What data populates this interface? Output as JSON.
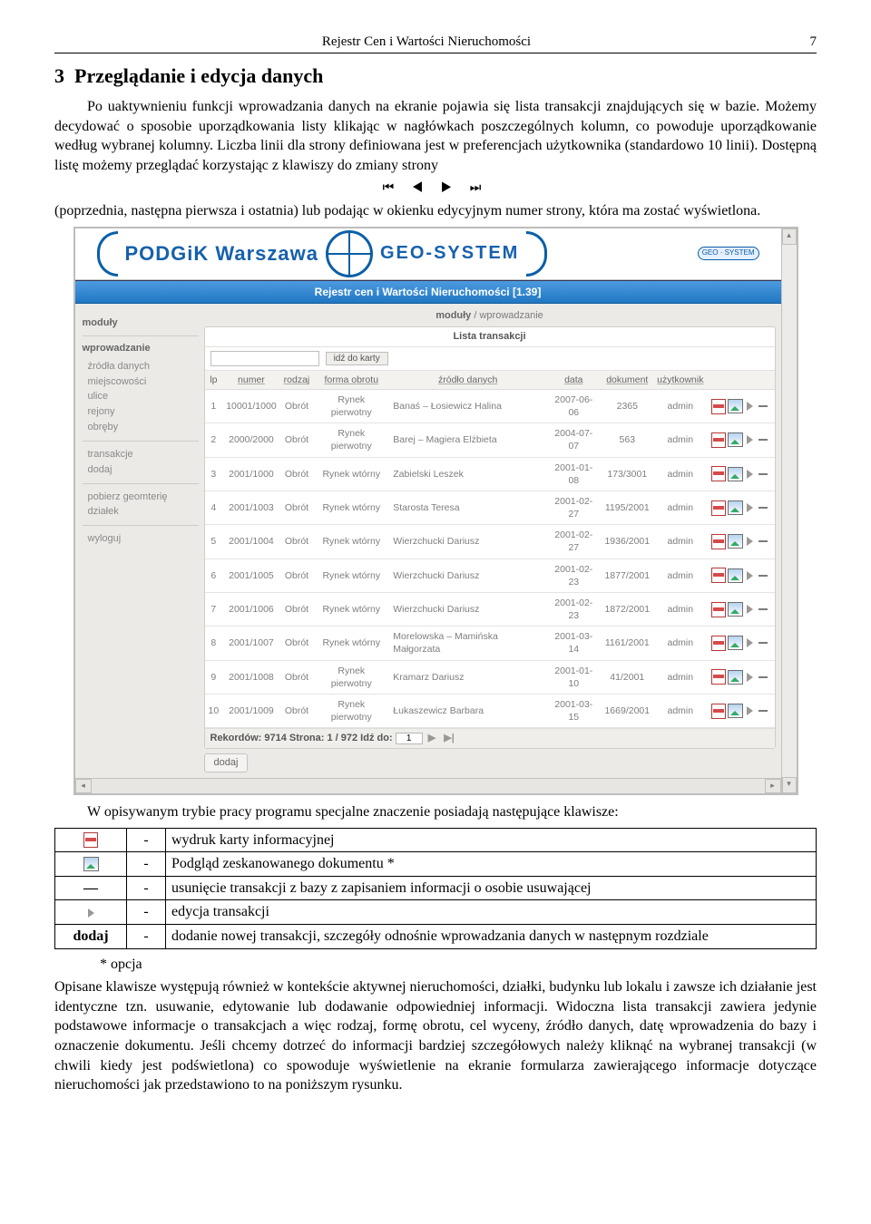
{
  "header": {
    "title": "Rejestr Cen i Wartości Nieruchomości",
    "page": "7"
  },
  "section": {
    "num": "3",
    "title": "Przeglądanie i edycja danych"
  },
  "para1": "Po uaktywnieniu funkcji wprowadzania danych na ekranie pojawia się lista transakcji znajdujących się w bazie. Możemy decydować o sposobie uporządkowania listy klikając w nagłówkach poszczególnych kolumn, co powoduje uporządkowanie według wybranej kolumny. Liczba linii dla strony definiowana jest w preferencjach użytkownika (standardowo 10 linii). Dostępną listę możemy przeglądać korzystając z klawiszy do zmiany strony",
  "nav_glyphs": "⏮ ◀ ▶ ⏭",
  "para2": "(poprzednia, następna pierwsza i ostatnia) lub podając w okienku edycyjnym numer strony, która ma zostać wyświetlona.",
  "app": {
    "banner": {
      "left": "PODGiK Warszawa",
      "right": "GEO-SYSTEM",
      "badge": "GEO · SYSTEM"
    },
    "titlebar": "Rejestr cen i Wartości Nieruchomości [1.39]",
    "crumb_root": "moduły",
    "crumb_leaf": "wprowadzanie",
    "sidebar": {
      "h1": "moduły",
      "h2": "wprowadzanie",
      "g1": [
        "źródła danych",
        "miejscowości",
        "ulice",
        "rejony",
        "obręby"
      ],
      "g2": [
        "transakcje",
        "dodaj"
      ],
      "g3": [
        "pobierz geomterię",
        "działek"
      ],
      "g4": [
        "wyloguj"
      ]
    },
    "panel_title": "Lista transakcji",
    "go_button": "idź do karty",
    "columns": [
      "lp",
      "numer",
      "rodzaj",
      "forma obrotu",
      "źródło danych",
      "data",
      "dokument",
      "użytkownik"
    ],
    "rows": [
      {
        "lp": "1",
        "numer": "10001/1000",
        "rodzaj": "Obrót",
        "forma": "Rynek pierwotny",
        "zrodlo": "Banaś – Łosiewicz Halina",
        "data": "2007-06-06",
        "dok": "2365",
        "user": "admin"
      },
      {
        "lp": "2",
        "numer": "2000/2000",
        "rodzaj": "Obrót",
        "forma": "Rynek pierwotny",
        "zrodlo": "Barej – Magiera Elżbieta",
        "data": "2004-07-07",
        "dok": "563",
        "user": "admin"
      },
      {
        "lp": "3",
        "numer": "2001/1000",
        "rodzaj": "Obrót",
        "forma": "Rynek wtórny",
        "zrodlo": "Zabielski Leszek",
        "data": "2001-01-08",
        "dok": "173/3001",
        "user": "admin"
      },
      {
        "lp": "4",
        "numer": "2001/1003",
        "rodzaj": "Obrót",
        "forma": "Rynek wtórny",
        "zrodlo": "Starosta Teresa",
        "data": "2001-02-27",
        "dok": "1195/2001",
        "user": "admin"
      },
      {
        "lp": "5",
        "numer": "2001/1004",
        "rodzaj": "Obrót",
        "forma": "Rynek wtórny",
        "zrodlo": "Wierzchucki Dariusz",
        "data": "2001-02-27",
        "dok": "1936/2001",
        "user": "admin"
      },
      {
        "lp": "6",
        "numer": "2001/1005",
        "rodzaj": "Obrót",
        "forma": "Rynek wtórny",
        "zrodlo": "Wierzchucki Dariusz",
        "data": "2001-02-23",
        "dok": "1877/2001",
        "user": "admin"
      },
      {
        "lp": "7",
        "numer": "2001/1006",
        "rodzaj": "Obrót",
        "forma": "Rynek wtórny",
        "zrodlo": "Wierzchucki Dariusz",
        "data": "2001-02-23",
        "dok": "1872/2001",
        "user": "admin"
      },
      {
        "lp": "8",
        "numer": "2001/1007",
        "rodzaj": "Obrót",
        "forma": "Rynek wtórny",
        "zrodlo": "Morelowska – Mamińska Małgorzata",
        "data": "2001-03-14",
        "dok": "1161/2001",
        "user": "admin"
      },
      {
        "lp": "9",
        "numer": "2001/1008",
        "rodzaj": "Obrót",
        "forma": "Rynek pierwotny",
        "zrodlo": "Kramarz Dariusz",
        "data": "2001-01-10",
        "dok": "41/2001",
        "user": "admin"
      },
      {
        "lp": "10",
        "numer": "2001/1009",
        "rodzaj": "Obrót",
        "forma": "Rynek pierwotny",
        "zrodlo": "Łukaszewicz Barbara",
        "data": "2001-03-15",
        "dok": "1669/2001",
        "user": "admin"
      }
    ],
    "pager": {
      "prefix": "Rekordów: 9714   Strona: 1 / 972   Idź do:",
      "value": "1"
    },
    "add_button": "dodaj"
  },
  "para3": "W opisywanym trybie pracy programu specjalne znaczenie posiadają następujące klawisze:",
  "meaning": [
    {
      "key_type": "pdf",
      "key": "",
      "desc": "wydruk karty informacyjnej"
    },
    {
      "key_type": "img",
      "key": "",
      "desc": "Podgląd zeskanowanego dokumentu  *"
    },
    {
      "key_type": "dash",
      "key": "—",
      "desc": "usunięcie transakcji z bazy z zapisaniem informacji o osobie usuwającej"
    },
    {
      "key_type": "play",
      "key": "",
      "desc": "edycja transakcji"
    },
    {
      "key_type": "text",
      "key": "dodaj",
      "desc": "dodanie nowej transakcji, szczegóły odnośnie wprowadzania danych w następnym rozdziale"
    }
  ],
  "footnote": "* opcja",
  "para4": "Opisane klawisze występują również w kontekście aktywnej nieruchomości, działki, budynku lub lokalu i zawsze ich działanie jest identyczne tzn. usuwanie, edytowanie lub dodawanie odpowiedniej informacji. Widoczna lista transakcji zawiera jedynie podstawowe informacje o transakcjach a więc rodzaj, formę obrotu, cel wyceny, źródło danych, datę wprowadzenia do bazy i oznaczenie dokumentu. Jeśli chcemy dotrzeć do informacji bardziej szczegółowych należy kliknąć na wybranej transakcji (w chwili kiedy jest podświetlona) co spowoduje wyświetlenie na ekranie formularza zawierającego informacje dotyczące nieruchomości jak przedstawiono to na poniższym rysunku."
}
